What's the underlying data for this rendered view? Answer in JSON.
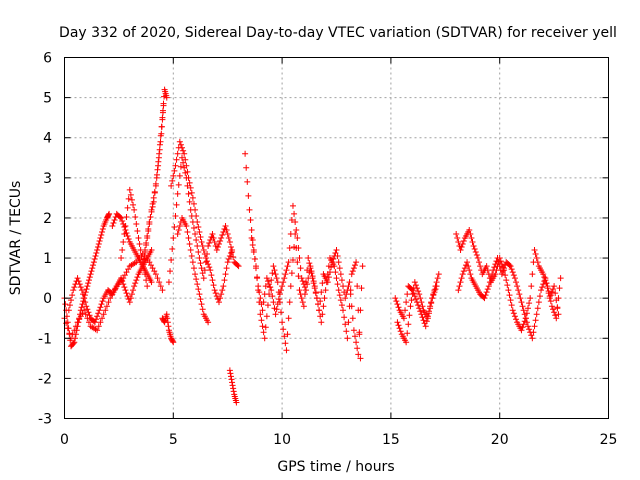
{
  "chart_data": {
    "type": "scatter",
    "title": "Day 332 of 2020, Sidereal Day-to-day VTEC variation (SDTVAR) for receiver yell",
    "xlabel": "GPS time / hours",
    "ylabel": "SDTVAR / TECUs",
    "xlim": [
      0,
      25
    ],
    "ylim": [
      -3,
      6
    ],
    "xticks": [
      0,
      5,
      10,
      15,
      20,
      25
    ],
    "yticks": [
      -3,
      -2,
      -1,
      0,
      1,
      2,
      3,
      4,
      5,
      6
    ],
    "grid": true,
    "marker": "+",
    "color": "#ff0000",
    "series": [
      {
        "name": "SDTVAR",
        "segments": [
          {
            "x": [
              0.0,
              0.15,
              0.3,
              0.45,
              0.6,
              0.75,
              0.9,
              1.05,
              1.2,
              1.35,
              1.5,
              1.65,
              1.8,
              1.95,
              2.05
            ],
            "y": [
              0.0,
              -0.6,
              -1.2,
              -1.1,
              -0.7,
              -0.3,
              0.0,
              0.3,
              0.6,
              0.9,
              1.2,
              1.5,
              1.8,
              2.0,
              2.1
            ]
          },
          {
            "x": [
              0.0,
              0.3,
              0.6,
              0.9,
              1.2,
              1.5,
              1.8,
              2.1,
              2.4,
              2.7,
              3.0,
              3.3,
              3.6,
              3.9,
              4.2,
              4.5
            ],
            "y": [
              -0.5,
              -1.0,
              -0.6,
              -0.3,
              -0.7,
              -0.8,
              -0.4,
              0.0,
              0.3,
              0.5,
              0.8,
              0.9,
              1.1,
              0.9,
              0.6,
              0.2
            ]
          },
          {
            "x": [
              0.2,
              0.4,
              0.6,
              0.8,
              1.0,
              1.2,
              1.4,
              1.6,
              1.8,
              2.0,
              2.2,
              2.4,
              2.6,
              2.8,
              3.0,
              3.2,
              3.4,
              3.6,
              3.8,
              4.0
            ],
            "y": [
              -0.3,
              0.2,
              0.5,
              0.2,
              -0.2,
              -0.5,
              -0.6,
              -0.3,
              0.0,
              0.2,
              0.1,
              0.3,
              0.5,
              0.2,
              -0.1,
              0.3,
              0.6,
              0.8,
              1.0,
              1.2
            ]
          },
          {
            "x": [
              2.2,
              2.4,
              2.6,
              2.8,
              3.0,
              3.2,
              3.4,
              3.6,
              3.8,
              4.0
            ],
            "y": [
              1.8,
              2.1,
              2.0,
              1.7,
              1.4,
              1.2,
              1.0,
              0.8,
              0.6,
              0.4
            ]
          },
          {
            "x": [
              2.6,
              2.8,
              3.0,
              3.2,
              3.4,
              3.6,
              3.8
            ],
            "y": [
              1.0,
              1.8,
              2.7,
              2.2,
              1.5,
              0.9,
              0.3
            ]
          },
          {
            "x": [
              3.6,
              3.8,
              4.0,
              4.2,
              4.35,
              4.5,
              4.6,
              4.7
            ],
            "y": [
              0.8,
              1.5,
              2.2,
              2.8,
              3.6,
              4.5,
              5.2,
              5.0
            ]
          },
          {
            "x": [
              3.7,
              3.9,
              4.1,
              4.3,
              4.45,
              4.55
            ],
            "y": [
              1.2,
              1.9,
              2.4,
              3.3,
              4.1,
              4.8
            ]
          },
          {
            "x": [
              4.5,
              4.6,
              4.7,
              4.8,
              4.9,
              5.0
            ],
            "y": [
              -0.5,
              -0.6,
              -0.4,
              -0.8,
              -1.0,
              -1.1
            ]
          },
          {
            "x": [
              4.8,
              5.0,
              5.2,
              5.4,
              5.6,
              5.8,
              6.0,
              6.2,
              6.4,
              6.6,
              6.8,
              7.0,
              7.2,
              7.4,
              7.6,
              7.8,
              8.0
            ],
            "y": [
              0.4,
              1.5,
              2.6,
              3.5,
              3.0,
              2.2,
              1.6,
              1.0,
              0.5,
              1.3,
              1.6,
              1.2,
              1.5,
              1.8,
              1.4,
              0.9,
              0.8
            ]
          },
          {
            "x": [
              4.9,
              5.1,
              5.3,
              5.5,
              5.7,
              5.9,
              6.1,
              6.3,
              6.5,
              6.7,
              6.9,
              7.1,
              7.3,
              7.5,
              7.7
            ],
            "y": [
              2.8,
              3.3,
              3.9,
              3.6,
              3.0,
              2.5,
              1.9,
              1.4,
              1.0,
              0.7,
              0.2,
              -0.1,
              0.3,
              0.9,
              1.2
            ]
          },
          {
            "x": [
              5.2,
              5.4,
              5.6,
              5.8,
              6.0,
              6.2,
              6.4,
              6.6
            ],
            "y": [
              1.6,
              2.0,
              1.8,
              1.2,
              0.6,
              0.1,
              -0.4,
              -0.6
            ]
          },
          {
            "x": [
              7.6,
              7.7,
              7.8,
              7.9
            ],
            "y": [
              -1.8,
              -2.1,
              -2.4,
              -2.6
            ]
          },
          {
            "x": [
              8.3,
              8.5,
              8.7,
              8.9,
              9.1,
              9.3,
              9.5,
              9.7,
              9.9,
              10.1,
              10.3,
              10.5,
              10.7,
              10.9,
              11.1,
              11.3,
              11.5,
              11.7,
              11.9,
              12.1,
              12.3,
              12.5,
              12.7,
              12.9,
              13.1,
              13.3,
              13.5,
              13.7
            ],
            "y": [
              3.6,
              2.2,
              1.2,
              0.3,
              -0.3,
              0.5,
              0.2,
              -0.4,
              0.1,
              0.5,
              0.9,
              2.3,
              1.5,
              0.5,
              0.2,
              0.8,
              0.3,
              -0.3,
              0.6,
              0.4,
              0.9,
              1.2,
              0.6,
              0.0,
              0.4,
              -0.8,
              -1.4,
              0.8
            ]
          },
          {
            "x": [
              8.6,
              8.8,
              9.0,
              9.2,
              9.4,
              9.6,
              9.8,
              10.0,
              10.2,
              10.4,
              10.6,
              10.8,
              11.0,
              11.2,
              11.4,
              11.6,
              11.8,
              12.0,
              12.2,
              12.4,
              12.6,
              12.8,
              13.0,
              13.2,
              13.4,
              13.6
            ],
            "y": [
              1.5,
              0.8,
              -0.4,
              -1.0,
              0.1,
              0.8,
              0.4,
              -0.6,
              -1.3,
              0.3,
              1.6,
              0.2,
              -0.2,
              1.0,
              0.5,
              0.0,
              -0.6,
              0.2,
              1.0,
              0.8,
              0.2,
              -0.3,
              -1.0,
              0.6,
              0.9,
              -1.5
            ]
          },
          {
            "x": [
              15.2,
              15.4,
              15.6,
              15.8,
              16.0,
              16.2,
              16.4,
              16.6,
              16.8,
              17.0,
              17.2
            ],
            "y": [
              0.0,
              -0.3,
              -0.5,
              0.3,
              0.2,
              -0.1,
              -0.4,
              -0.7,
              -0.2,
              0.2,
              0.6
            ]
          },
          {
            "x": [
              15.3,
              15.5,
              15.7,
              15.9,
              16.1,
              16.3,
              16.5,
              16.7,
              16.9,
              17.1
            ],
            "y": [
              -0.6,
              -0.9,
              -1.1,
              -0.2,
              0.4,
              0.1,
              -0.3,
              -0.5,
              0.0,
              0.3
            ]
          },
          {
            "x": [
              18.0,
              18.2,
              18.4,
              18.6,
              18.8,
              19.0,
              19.2,
              19.4,
              19.6,
              19.8,
              20.0,
              20.2,
              20.4,
              20.6,
              20.8,
              21.0,
              21.2,
              21.4,
              21.6,
              21.8,
              22.0,
              22.2,
              22.4,
              22.6,
              22.8
            ],
            "y": [
              1.6,
              1.2,
              1.5,
              1.7,
              1.3,
              1.0,
              0.6,
              0.8,
              0.4,
              0.6,
              1.0,
              0.7,
              0.2,
              -0.3,
              -0.6,
              -0.8,
              -0.5,
              0.0,
              1.2,
              0.8,
              0.6,
              0.3,
              -0.2,
              -0.5,
              0.5
            ]
          },
          {
            "x": [
              18.1,
              18.3,
              18.5,
              18.7,
              18.9,
              19.1,
              19.3,
              19.5,
              19.7,
              19.9,
              20.1,
              20.3,
              20.5,
              20.7,
              20.9,
              21.1,
              21.3,
              21.5,
              21.7,
              21.9,
              22.1,
              22.3,
              22.5,
              22.7
            ],
            "y": [
              0.2,
              0.6,
              0.9,
              0.5,
              0.3,
              0.1,
              0.0,
              0.3,
              0.7,
              1.0,
              0.6,
              0.9,
              0.8,
              0.5,
              0.1,
              -0.3,
              -0.7,
              -1.0,
              -0.4,
              0.2,
              0.5,
              0.0,
              0.3,
              -0.4
            ]
          }
        ]
      }
    ]
  }
}
